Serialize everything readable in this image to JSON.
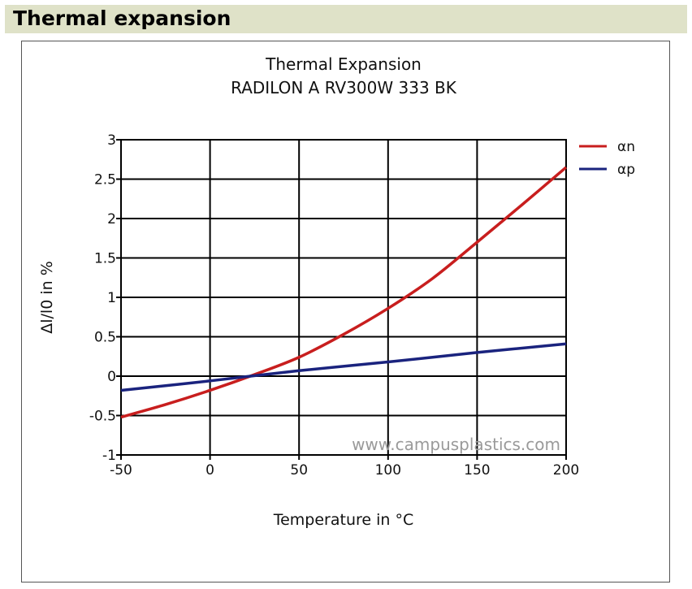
{
  "page": {
    "heading": "Thermal expansion"
  },
  "chart_data": {
    "type": "line",
    "title": "Thermal Expansion",
    "subtitle": "RADILON A RV300W 333 BK",
    "xlabel": "Temperature in °C",
    "ylabel": "Δl/l0 in %",
    "xlim": [
      -50,
      200
    ],
    "ylim": [
      -1,
      3
    ],
    "xticks": [
      -50,
      0,
      50,
      100,
      150,
      200
    ],
    "yticks": [
      -1,
      -0.5,
      0,
      0.5,
      1,
      1.5,
      2,
      2.5,
      3
    ],
    "grid": true,
    "legend_position": "top-right",
    "watermark": "www.campusplastics.com",
    "series": [
      {
        "name": "αn",
        "color": "#c81e1e",
        "x": [
          -50,
          -25,
          0,
          25,
          50,
          75,
          100,
          125,
          150,
          175,
          200
        ],
        "y": [
          -0.52,
          -0.36,
          -0.18,
          0.02,
          0.24,
          0.53,
          0.86,
          1.24,
          1.7,
          2.17,
          2.65
        ]
      },
      {
        "name": "αp",
        "color": "#1a237e",
        "x": [
          -50,
          0,
          50,
          100,
          150,
          200
        ],
        "y": [
          -0.18,
          -0.06,
          0.07,
          0.18,
          0.3,
          0.41
        ]
      }
    ]
  }
}
